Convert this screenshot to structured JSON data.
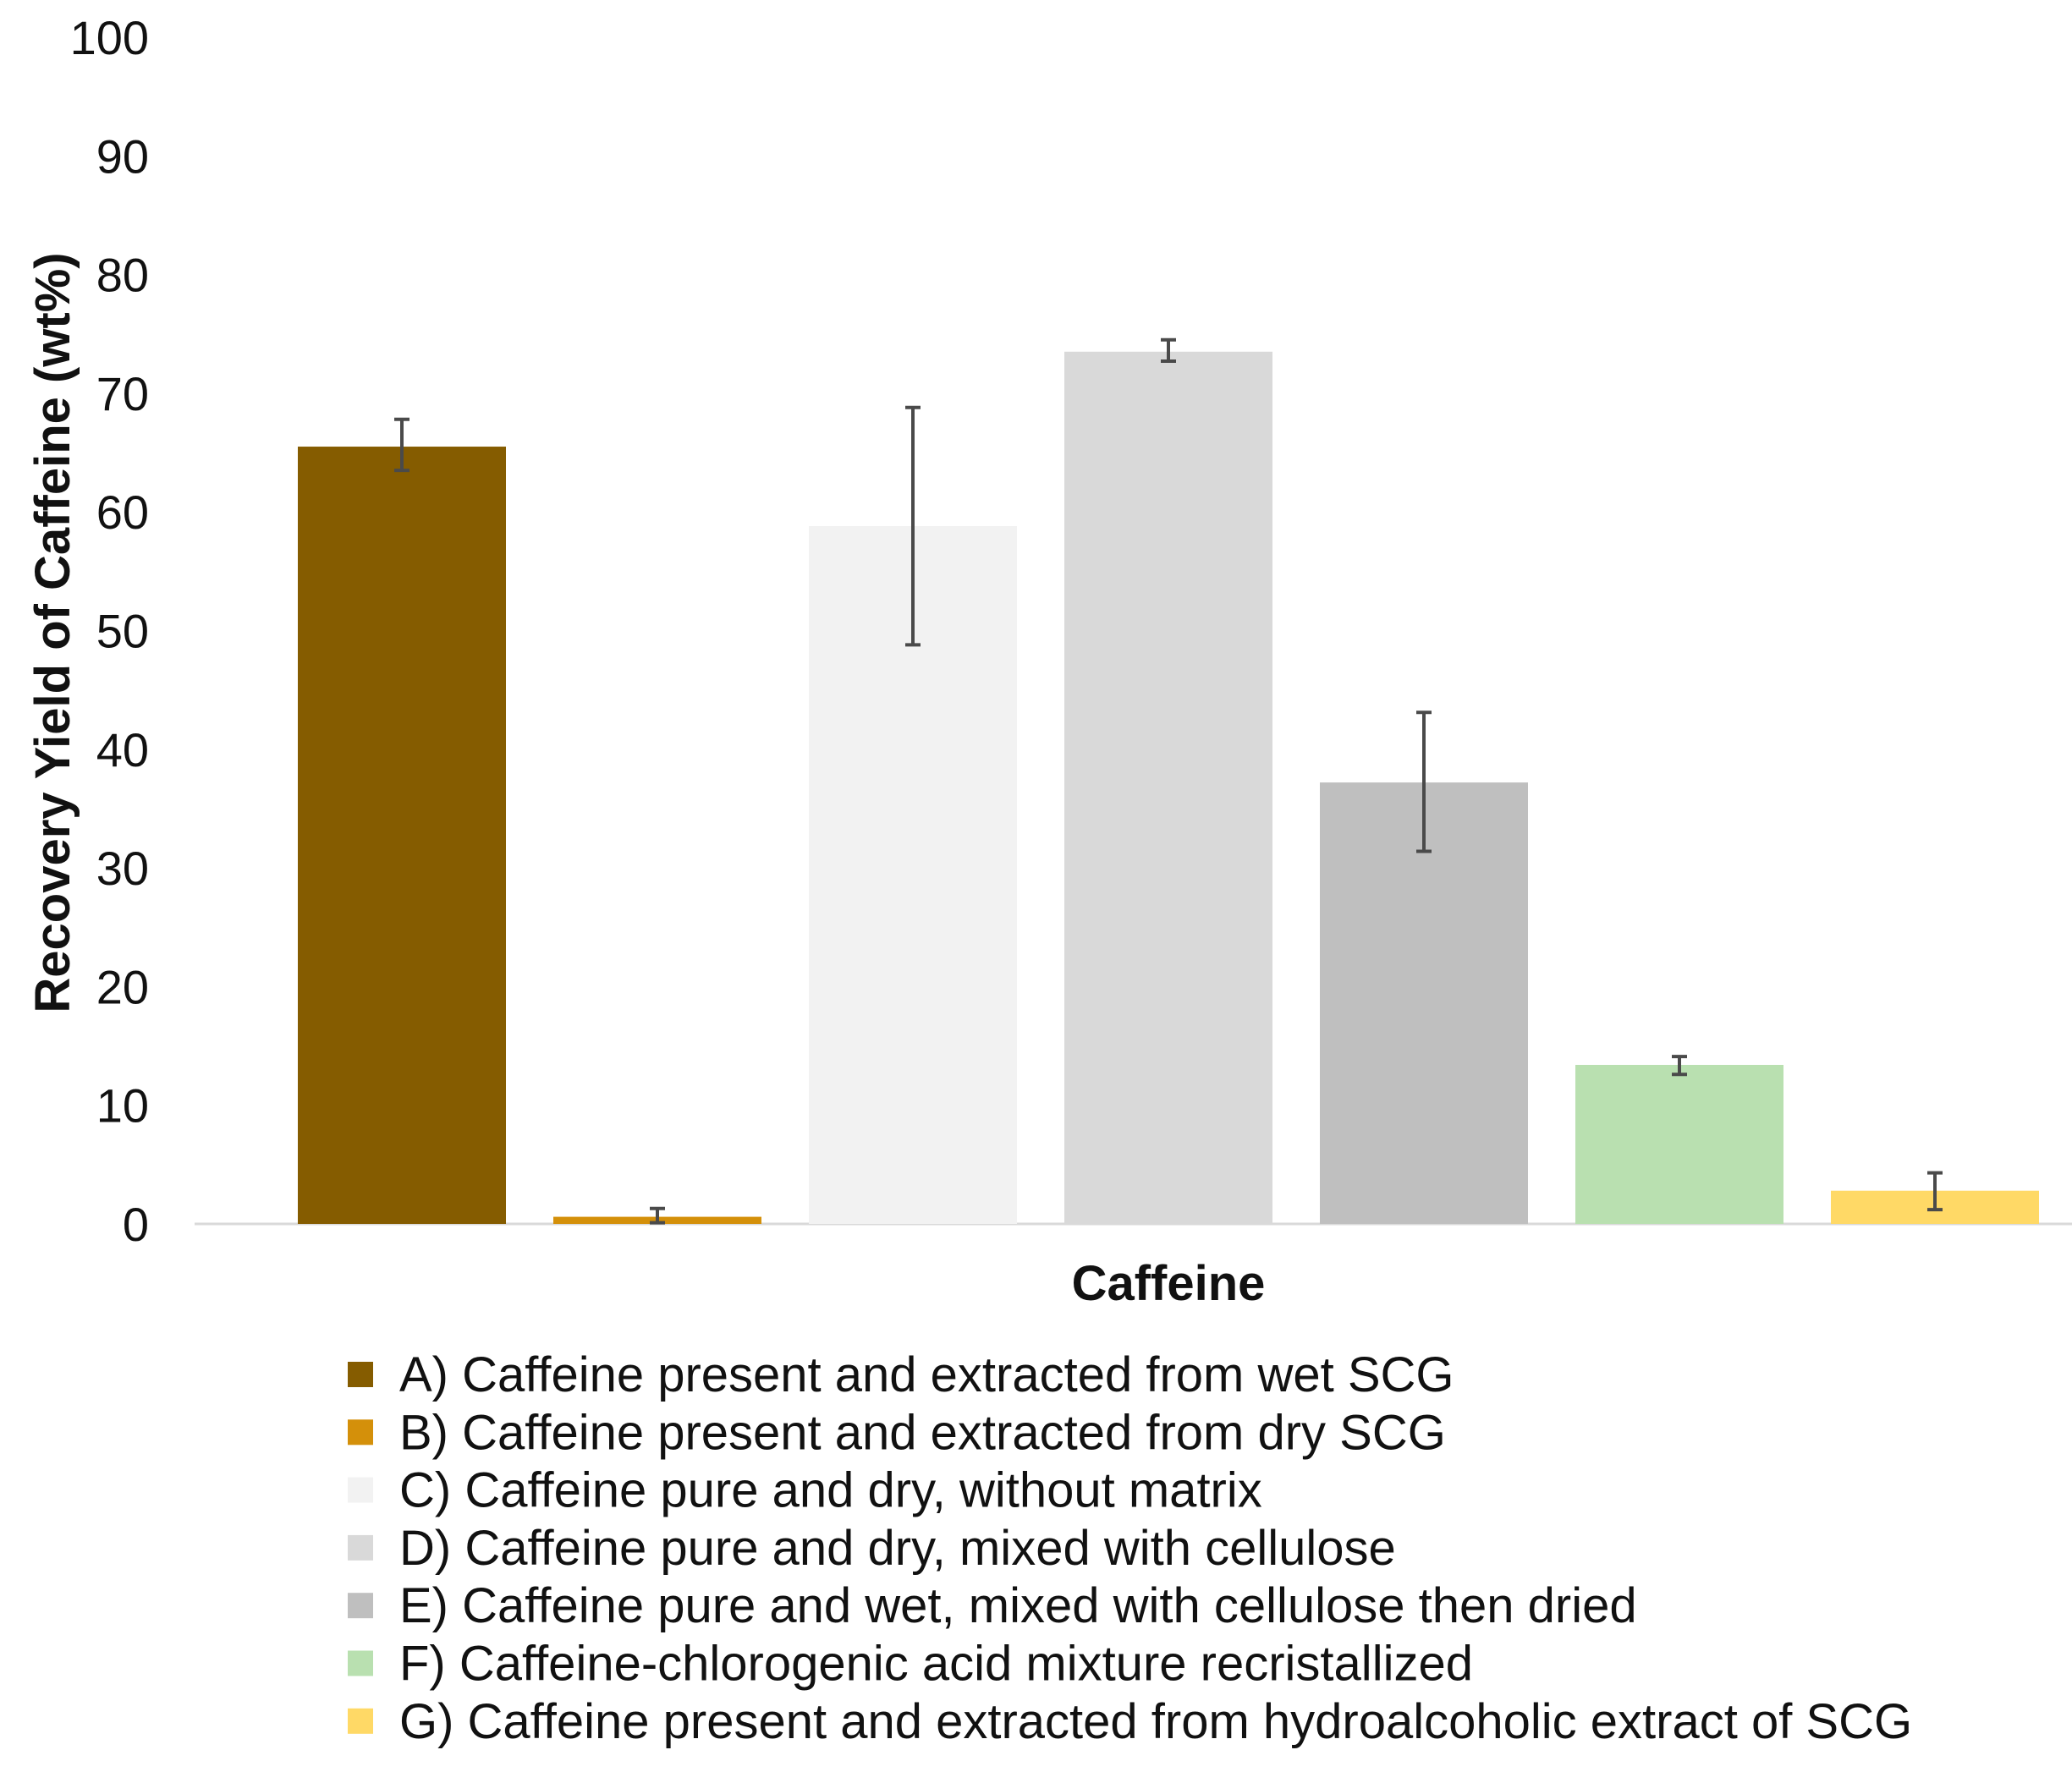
{
  "chart_data": {
    "type": "bar",
    "title": "",
    "xlabel": "Caffeine",
    "ylabel": "Recovery Yield of Caffeine (wt%)",
    "ylim": [
      0,
      100
    ],
    "yticks": [
      "0",
      "10",
      "20",
      "30",
      "40",
      "50",
      "60",
      "70",
      "80",
      "90",
      "100"
    ],
    "grid": false,
    "legend_position": "bottom",
    "series": [
      {
        "name": "A) Caffeine present and extracted from wet SCG",
        "value": 65.5,
        "error_low": 63.5,
        "error_high": 67.8,
        "color": "#855c00"
      },
      {
        "name": "B) Caffeine present and extracted from dry SCG",
        "value": 0.6,
        "error_low": 0.1,
        "error_high": 1.3,
        "color": "#d4900a"
      },
      {
        "name": "C) Caffeine pure and dry, without matrix",
        "value": 58.8,
        "error_low": 48.8,
        "error_high": 68.8,
        "color": "#f2f2f2"
      },
      {
        "name": "D) Caffeine pure and dry, mixed with cellulose",
        "value": 73.5,
        "error_low": 72.7,
        "error_high": 74.5,
        "color": "#d9d9d9"
      },
      {
        "name": "E) Caffeine pure and wet, mixed with cellulose then dried",
        "value": 37.2,
        "error_low": 31.4,
        "error_high": 43.1,
        "color": "#bfbfbf"
      },
      {
        "name": "F) Caffeine-chlorogenic acid mixture recristallized",
        "value": 13.4,
        "error_low": 12.6,
        "error_high": 14.1,
        "color": "#b9e0b0"
      },
      {
        "name": "G) Caffeine present and extracted from hydroalcoholic extract of SCG",
        "value": 2.8,
        "error_low": 1.2,
        "error_high": 4.3,
        "color": "#ffd966"
      }
    ]
  }
}
